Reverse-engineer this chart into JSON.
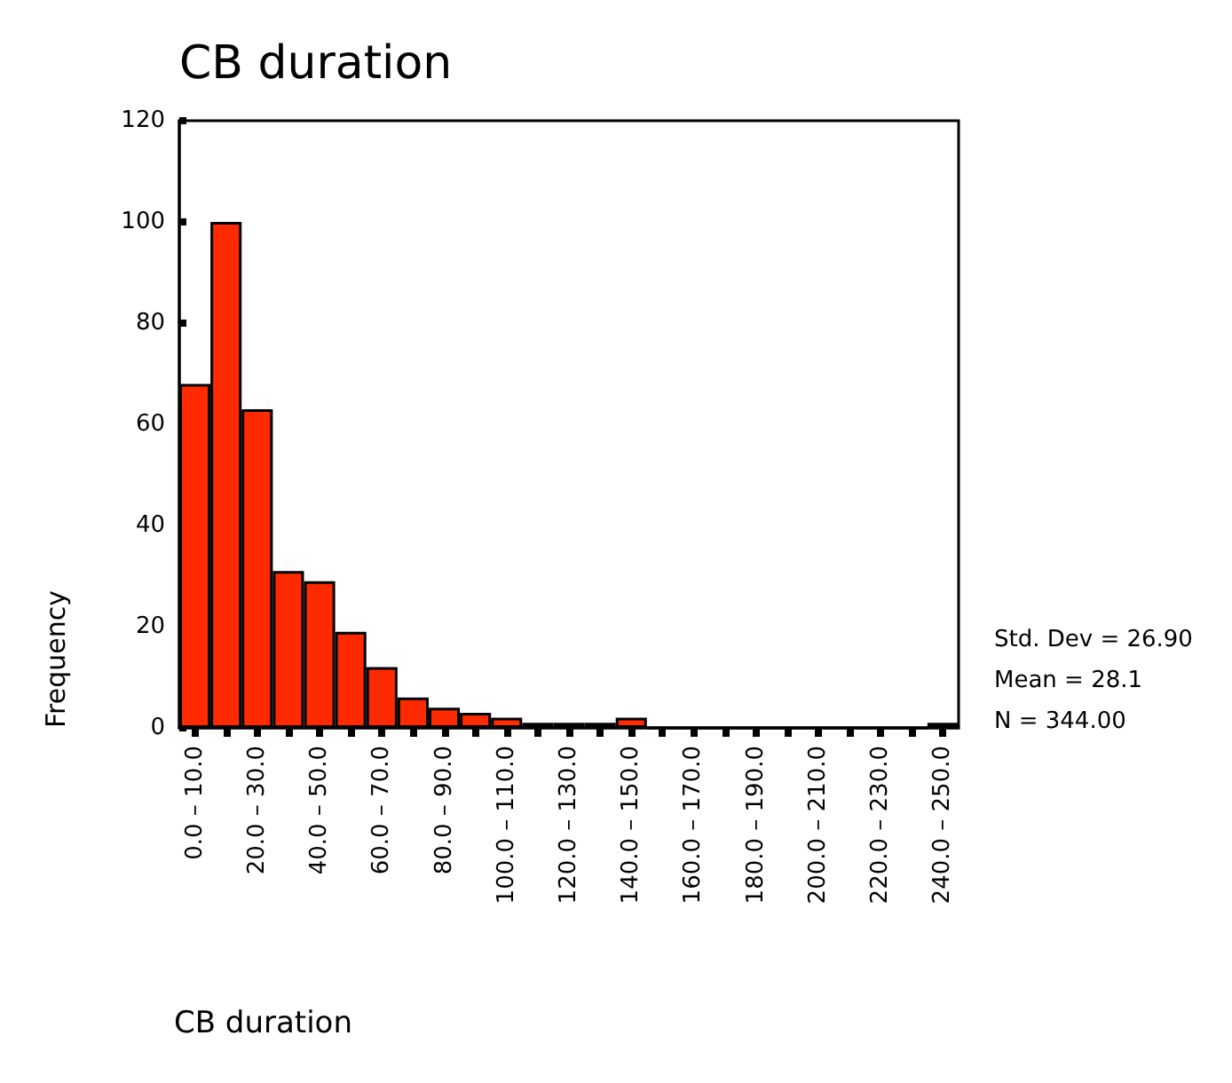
{
  "chart_data": {
    "type": "bar",
    "title": "CB duration",
    "xlabel": "CB duration",
    "ylabel": "Frequency",
    "categories": [
      "0.0 – 10.0",
      null,
      "20.0 – 30.0",
      null,
      "40.0 – 50.0",
      null,
      "60.0 – 70.0",
      null,
      "80.0 – 90.0",
      null,
      "100.0 – 110.0",
      null,
      "120.0 – 130.0",
      null,
      "140.0 – 150.0",
      null,
      "160.0 – 170.0",
      null,
      "180.0 – 190.0",
      null,
      "200.0 – 210.0",
      null,
      "220.0 – 230.0",
      null,
      "240.0 – 250.0"
    ],
    "values": [
      68,
      100,
      63,
      31,
      29,
      19,
      12,
      6,
      4,
      3,
      2,
      1,
      1,
      1,
      2,
      0,
      0,
      0,
      0,
      0,
      0,
      0,
      0,
      0,
      1
    ],
    "color": "#ff2a00",
    "ylim": [
      0,
      120
    ],
    "yticks": [
      0,
      20,
      40,
      60,
      80,
      100,
      120
    ],
    "grid": false,
    "annotations": [
      "Std. Dev = 26.90",
      "Mean = 28.1",
      "N = 344.00"
    ]
  }
}
